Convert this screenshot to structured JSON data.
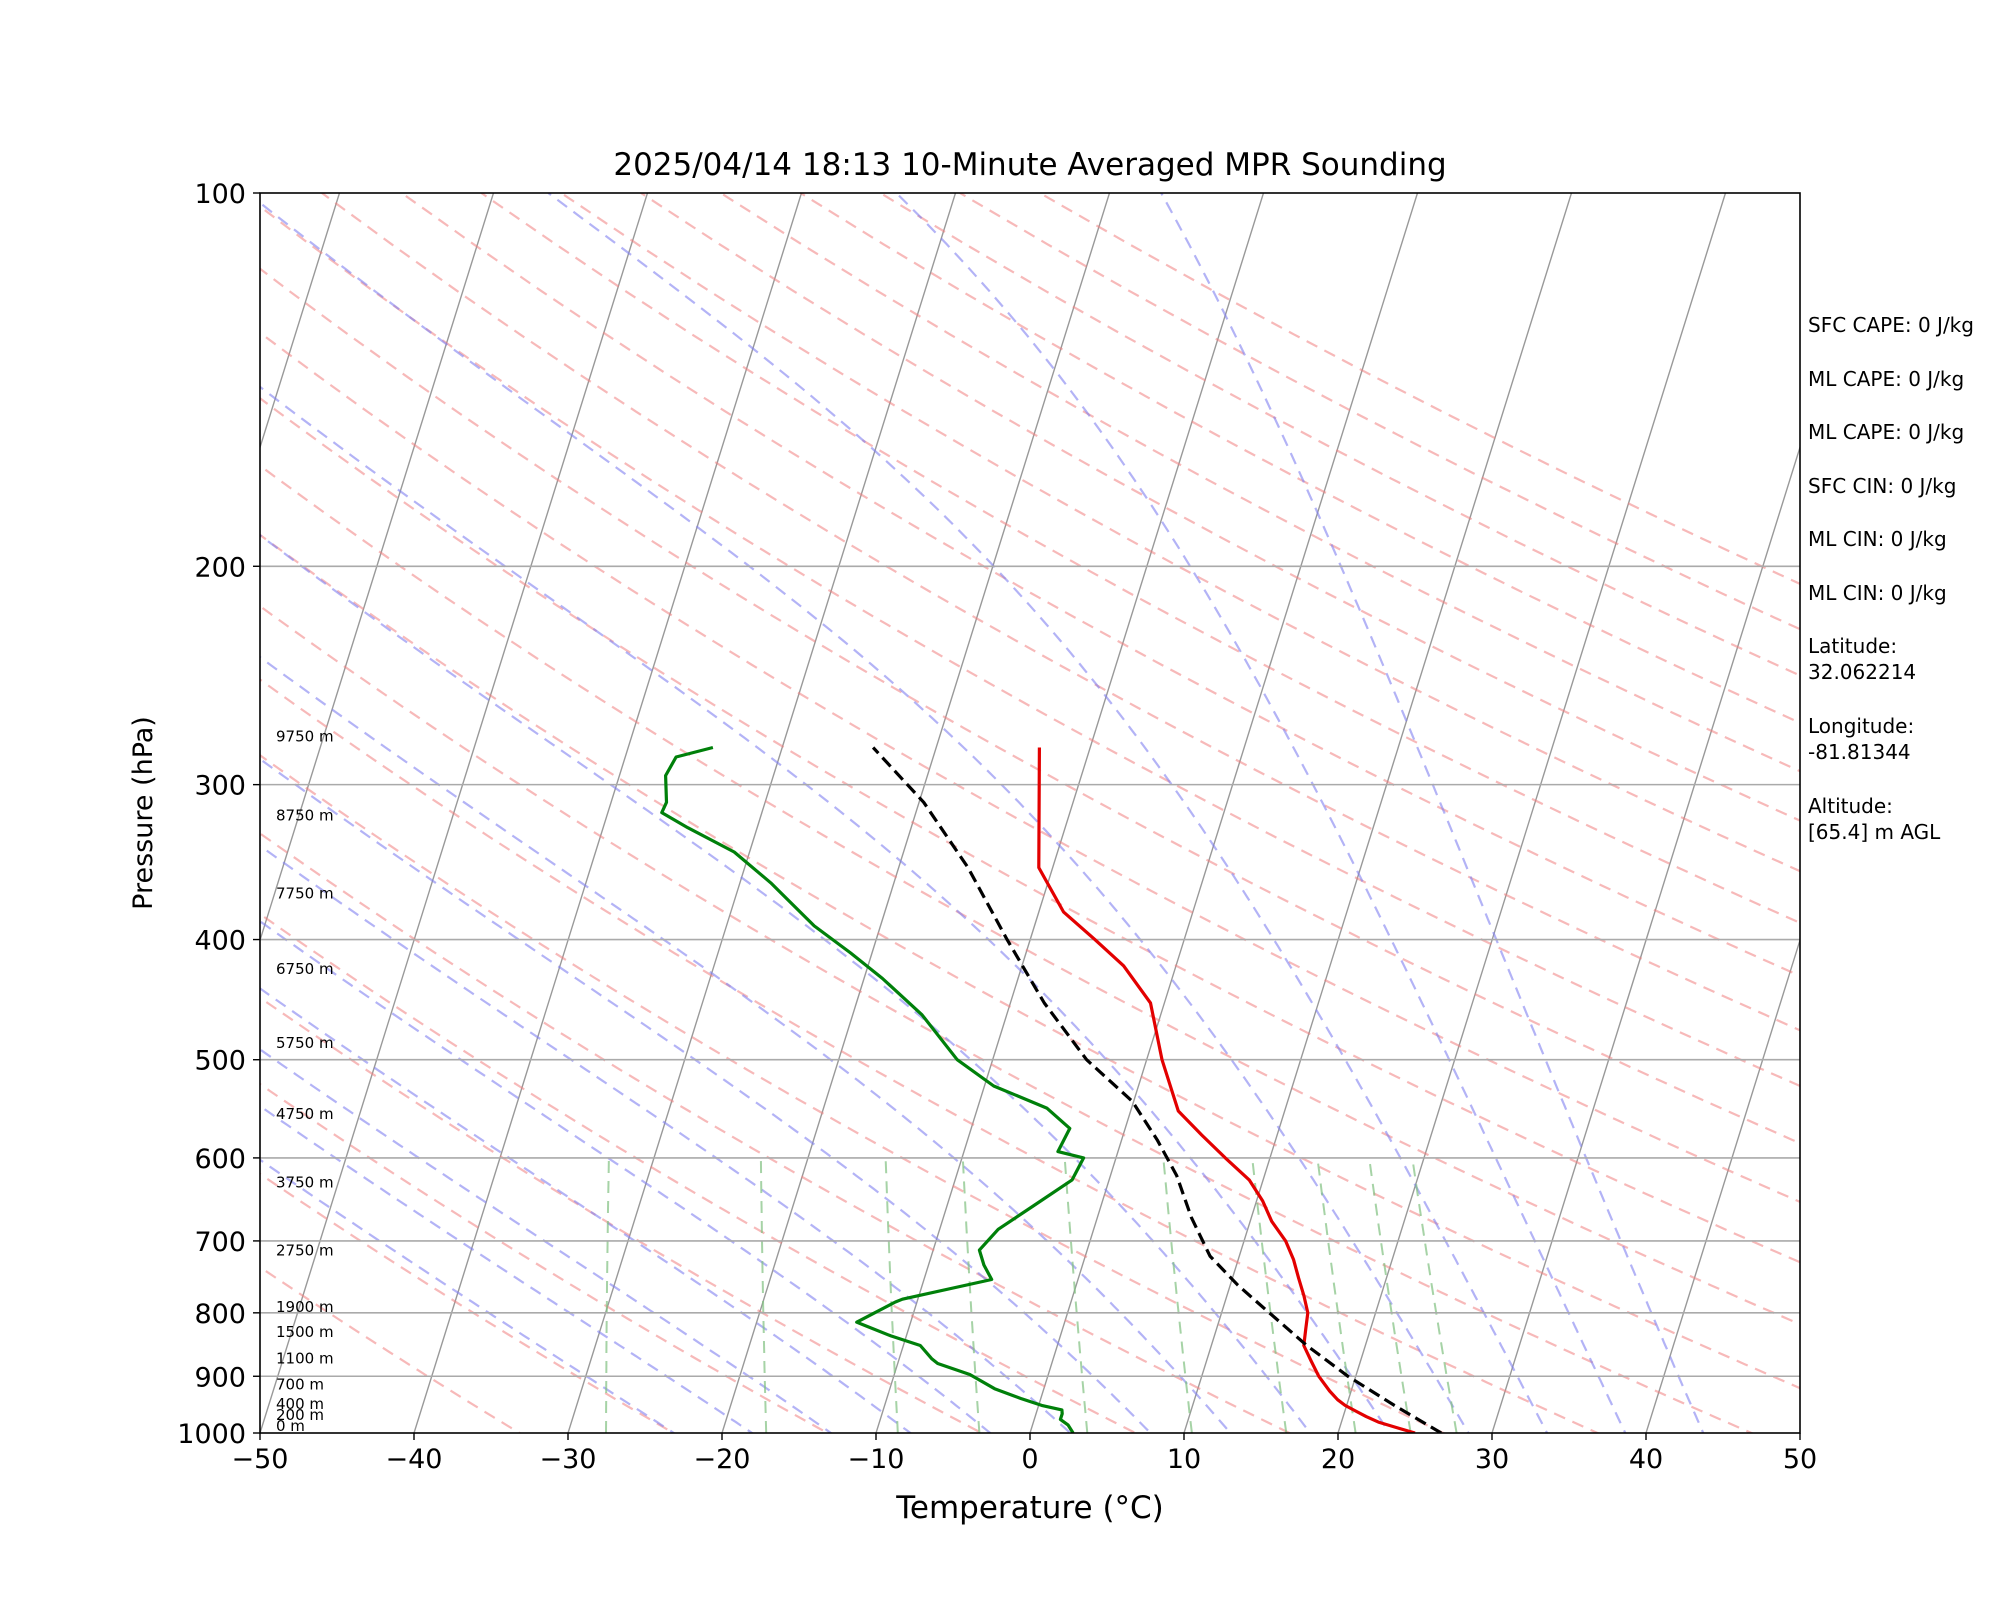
{
  "chart_data": {
    "type": "line",
    "title": "2025/04/14 18:13 10-Minute Averaged MPR Sounding",
    "xlabel": "Temperature (°C)",
    "ylabel": "Pressure (hPa)",
    "xlim": [
      -50,
      50
    ],
    "ylim": [
      1000,
      100
    ],
    "y_scale": "log",
    "skew": true,
    "x_ticks": [
      "−50",
      "−40",
      "−30",
      "−20",
      "−10",
      "0",
      "10",
      "20",
      "30",
      "40",
      "50"
    ],
    "y_ticks": [
      "1000",
      "900",
      "800",
      "700",
      "600",
      "500",
      "400",
      "300",
      "200",
      "100"
    ],
    "grid": true,
    "series": [
      {
        "color": "#e30000",
        "x": [
          25.0,
          23.7,
          22.4,
          21.5,
          20.7,
          19.9,
          19.3,
          18.6,
          17.6,
          16.8,
          16.0,
          15.8,
          15.6,
          15.0,
          14.3,
          13.6,
          12.7,
          11.4,
          10.4,
          9.1,
          7.1,
          5.1,
          3.1,
          1.0,
          -0.9,
          -3.4,
          -5.8,
          -8.4,
          -10.9,
          -13.3
        ],
        "y": [
          1000,
          990,
          980,
          970,
          960,
          950,
          940,
          925,
          900,
          875,
          850,
          825,
          800,
          775,
          750,
          725,
          700,
          675,
          650,
          625,
          600,
          575,
          550,
          500,
          450,
          420,
          400,
          380,
          350,
          280
        ]
      },
      {
        "color": "#00800a",
        "x": [
          2.8,
          2.3,
          1.7,
          1.7,
          1.6,
          0.2,
          -1.3,
          -3.2,
          -5.1,
          -7.4,
          -7.9,
          -8.9,
          -11.0,
          -12.9,
          -13.5,
          -11.4,
          -11.0,
          -5.6,
          -6.4,
          -7.0,
          -6.2,
          -4.4,
          -2.4,
          -2.1,
          -3.9,
          -3.6,
          -5.5,
          -9.4,
          -12.3,
          -15.5,
          -18.8,
          -21.4,
          -24.3,
          -28.0,
          -31.0,
          -34.5,
          -36.5,
          -36.4,
          -37.0,
          -36.7,
          -34.5
        ],
        "y": [
          1000,
          985,
          975,
          965,
          958,
          950,
          938,
          921,
          897,
          879,
          871,
          850,
          835,
          819,
          814,
          784,
          780,
          752,
          732,
          712,
          685,
          656,
          625,
          600,
          593,
          568,
          547,
          525,
          500,
          460,
          430,
          410,
          390,
          360,
          340,
          325,
          316,
          310,
          295,
          285,
          280
        ]
      },
      {
        "color": "#000000",
        "x": [
          26.7,
          23.1,
          19.5,
          16.2,
          13.1,
          10.5,
          8.1,
          6.1,
          4.3,
          2.3,
          -0.1,
          -3.9,
          -7.8,
          -11.5,
          -15.5,
          -19.7,
          -24.1
        ],
        "y": [
          1000,
          950,
          900,
          850,
          800,
          760,
          720,
          670,
          620,
          580,
          540,
          500,
          450,
          400,
          350,
          310,
          280
        ]
      }
    ],
    "height_labels": [
      "9750 m",
      "8750 m",
      "7750 m",
      "6750 m",
      "5750 m",
      "4750 m",
      "3750 m",
      "2750 m",
      "1900 m",
      "1500 m",
      "1100 m",
      "700 m",
      "400 m",
      "200 m",
      "0 m"
    ],
    "height_label_pressures": [
      278,
      322,
      372,
      428,
      491,
      560,
      636,
      722,
      802,
      840,
      882,
      926,
      960,
      980,
      1000
    ],
    "background_lines": {
      "dry_adiabats_color": "#f08080",
      "moist_adiabats_color": "#8080f0",
      "mixing_ratio_color": "#80c080",
      "isotherm_color": "#999999"
    }
  },
  "info_panel": [
    "SFC CAPE: 0 J/kg",
    "ML CAPE: 0 J/kg",
    "ML CAPE: 0 J/kg",
    "SFC CIN: 0 J/kg",
    "ML CIN: 0 J/kg",
    "ML CIN: 0 J/kg"
  ],
  "location": {
    "latitude_label": "Latitude:",
    "latitude_value": "32.062214",
    "longitude_label": "Longitude:",
    "longitude_value": "-81.81344",
    "altitude_label": "Altitude:",
    "altitude_value": "[65.4] m AGL"
  }
}
